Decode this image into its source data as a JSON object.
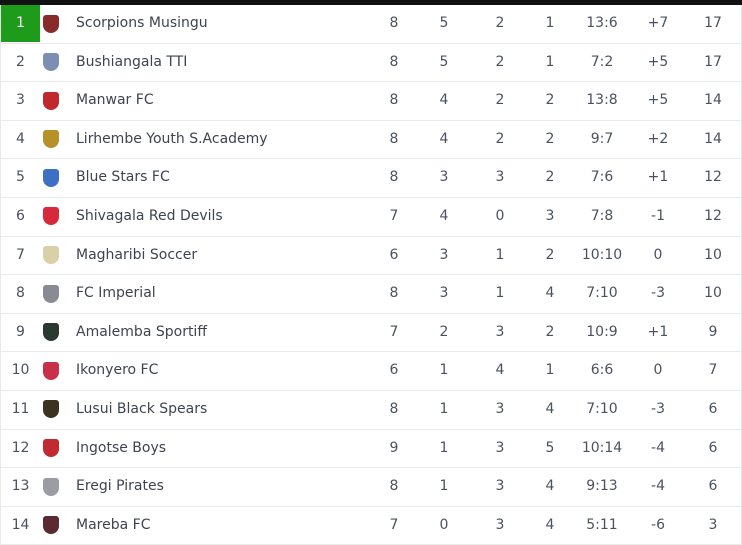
{
  "colors": {
    "leader_highlight": "#1e9b1a",
    "text": "#4a5260"
  },
  "standings": [
    {
      "pos": "1",
      "team": "Scorpions Musingu",
      "logo": "scorpions-musingu-crest-icon",
      "logo_color": "#8a2b2b",
      "p": "8",
      "w": "5",
      "d": "2",
      "l": "1",
      "goals": "13:6",
      "gd": "+7",
      "pts": "17"
    },
    {
      "pos": "2",
      "team": "Bushiangala TTI",
      "logo": "bushiangala-tti-crest-icon",
      "logo_color": "#7d8fb0",
      "p": "8",
      "w": "5",
      "d": "2",
      "l": "1",
      "goals": "7:2",
      "gd": "+5",
      "pts": "17"
    },
    {
      "pos": "3",
      "team": "Manwar FC",
      "logo": "manwar-fc-crest-icon",
      "logo_color": "#c0282d",
      "p": "8",
      "w": "4",
      "d": "2",
      "l": "2",
      "goals": "13:8",
      "gd": "+5",
      "pts": "14"
    },
    {
      "pos": "4",
      "team": "Lirhembe Youth S.Academy",
      "logo": "lirhembe-crest-icon",
      "logo_color": "#b8902a",
      "p": "8",
      "w": "4",
      "d": "2",
      "l": "2",
      "goals": "9:7",
      "gd": "+2",
      "pts": "14"
    },
    {
      "pos": "5",
      "team": "Blue Stars FC",
      "logo": "blue-stars-crest-icon",
      "logo_color": "#3d6fc4",
      "p": "8",
      "w": "3",
      "d": "3",
      "l": "2",
      "goals": "7:6",
      "gd": "+1",
      "pts": "12"
    },
    {
      "pos": "6",
      "team": "Shivagala Red Devils",
      "logo": "shivagala-crest-icon",
      "logo_color": "#d8283c",
      "p": "7",
      "w": "4",
      "d": "0",
      "l": "3",
      "goals": "7:8",
      "gd": "-1",
      "pts": "12"
    },
    {
      "pos": "7",
      "team": "Magharibi Soccer",
      "logo": "magharibi-crest-icon",
      "logo_color": "#d9cfa8",
      "p": "6",
      "w": "3",
      "d": "1",
      "l": "2",
      "goals": "10:10",
      "gd": "0",
      "pts": "10"
    },
    {
      "pos": "8",
      "team": "FC Imperial",
      "logo": "fc-imperial-crest-icon",
      "logo_color": "#888c92",
      "p": "8",
      "w": "3",
      "d": "1",
      "l": "4",
      "goals": "7:10",
      "gd": "-3",
      "pts": "10"
    },
    {
      "pos": "9",
      "team": "Amalemba Sportiff",
      "logo": "amalemba-crest-icon",
      "logo_color": "#2b3a30",
      "p": "7",
      "w": "2",
      "d": "3",
      "l": "2",
      "goals": "10:9",
      "gd": "+1",
      "pts": "9"
    },
    {
      "pos": "10",
      "team": "Ikonyero FC",
      "logo": "ikonyero-crest-icon",
      "logo_color": "#c8304a",
      "p": "6",
      "w": "1",
      "d": "4",
      "l": "1",
      "goals": "6:6",
      "gd": "0",
      "pts": "7"
    },
    {
      "pos": "11",
      "team": "Lusui Black Spears",
      "logo": "lusui-crest-icon",
      "logo_color": "#3a3320",
      "p": "8",
      "w": "1",
      "d": "3",
      "l": "4",
      "goals": "7:10",
      "gd": "-3",
      "pts": "6"
    },
    {
      "pos": "12",
      "team": "Ingotse Boys",
      "logo": "ingotse-crest-icon",
      "logo_color": "#c02a30",
      "p": "9",
      "w": "1",
      "d": "3",
      "l": "5",
      "goals": "10:14",
      "gd": "-4",
      "pts": "6"
    },
    {
      "pos": "13",
      "team": "Eregi Pirates",
      "logo": "eregi-pirates-crest-icon",
      "logo_color": "#9a9ea4",
      "p": "8",
      "w": "1",
      "d": "3",
      "l": "4",
      "goals": "9:13",
      "gd": "-4",
      "pts": "6"
    },
    {
      "pos": "14",
      "team": "Mareba FC",
      "logo": "mareba-crest-icon",
      "logo_color": "#5a2a30",
      "p": "7",
      "w": "0",
      "d": "3",
      "l": "4",
      "goals": "5:11",
      "gd": "-6",
      "pts": "3"
    }
  ]
}
